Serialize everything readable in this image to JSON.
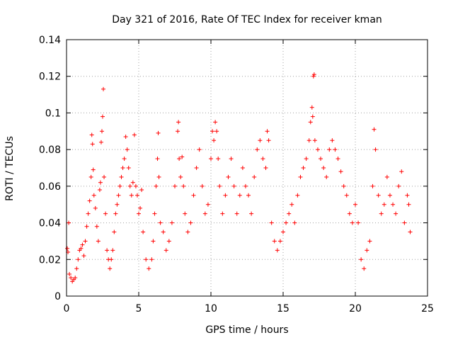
{
  "chart_data": {
    "type": "scatter",
    "title": "Day 321 of 2016, Rate Of TEC Index for receiver kman",
    "xlabel": "GPS time / hours",
    "ylabel": "ROTI / TECUs",
    "xlim": [
      0,
      25
    ],
    "ylim": [
      0,
      0.14
    ],
    "grid": true,
    "marker": "plus",
    "color": "#ff0000",
    "xticks": [
      0,
      5,
      10,
      15,
      20,
      25
    ],
    "xtick_labels": [
      "0",
      "5",
      "10",
      "15",
      "20",
      "25"
    ],
    "yticks": [
      0,
      0.02,
      0.04,
      0.06,
      0.08,
      0.1,
      0.12,
      0.14
    ],
    "ytick_labels": [
      "0",
      "0.02",
      "0.04",
      "0.06",
      "0.08",
      "0.1",
      "0.12",
      "0.14"
    ],
    "series": [
      {
        "name": "ROTI",
        "points": [
          [
            0.05,
            0.026
          ],
          [
            0.1,
            0.024
          ],
          [
            0.15,
            0.04
          ],
          [
            0.2,
            0.012
          ],
          [
            0.3,
            0.01
          ],
          [
            0.4,
            0.008
          ],
          [
            0.5,
            0.009
          ],
          [
            0.6,
            0.01
          ],
          [
            0.7,
            0.015
          ],
          [
            0.8,
            0.02
          ],
          [
            0.9,
            0.025
          ],
          [
            1.0,
            0.026
          ],
          [
            1.1,
            0.028
          ],
          [
            1.2,
            0.022
          ],
          [
            1.3,
            0.03
          ],
          [
            1.4,
            0.038
          ],
          [
            1.5,
            0.045
          ],
          [
            1.6,
            0.052
          ],
          [
            1.7,
            0.065
          ],
          [
            1.75,
            0.088
          ],
          [
            1.8,
            0.083
          ],
          [
            1.85,
            0.069
          ],
          [
            1.9,
            0.055
          ],
          [
            2.0,
            0.048
          ],
          [
            2.1,
            0.038
          ],
          [
            2.2,
            0.03
          ],
          [
            2.3,
            0.058
          ],
          [
            2.35,
            0.062
          ],
          [
            2.4,
            0.084
          ],
          [
            2.45,
            0.09
          ],
          [
            2.5,
            0.098
          ],
          [
            2.55,
            0.113
          ],
          [
            2.6,
            0.065
          ],
          [
            2.7,
            0.045
          ],
          [
            2.8,
            0.025
          ],
          [
            2.9,
            0.02
          ],
          [
            3.0,
            0.015
          ],
          [
            3.1,
            0.02
          ],
          [
            3.2,
            0.025
          ],
          [
            3.3,
            0.035
          ],
          [
            3.4,
            0.045
          ],
          [
            3.5,
            0.05
          ],
          [
            3.6,
            0.055
          ],
          [
            3.7,
            0.06
          ],
          [
            3.8,
            0.065
          ],
          [
            3.9,
            0.07
          ],
          [
            4.0,
            0.075
          ],
          [
            4.1,
            0.087
          ],
          [
            4.2,
            0.08
          ],
          [
            4.3,
            0.07
          ],
          [
            4.4,
            0.06
          ],
          [
            4.5,
            0.055
          ],
          [
            4.6,
            0.062
          ],
          [
            4.7,
            0.088
          ],
          [
            4.8,
            0.06
          ],
          [
            4.9,
            0.055
          ],
          [
            5.0,
            0.045
          ],
          [
            5.1,
            0.048
          ],
          [
            5.2,
            0.058
          ],
          [
            5.3,
            0.035
          ],
          [
            5.5,
            0.02
          ],
          [
            5.7,
            0.015
          ],
          [
            5.9,
            0.02
          ],
          [
            6.0,
            0.03
          ],
          [
            6.1,
            0.045
          ],
          [
            6.2,
            0.06
          ],
          [
            6.3,
            0.075
          ],
          [
            6.35,
            0.089
          ],
          [
            6.4,
            0.065
          ],
          [
            6.5,
            0.04
          ],
          [
            6.7,
            0.035
          ],
          [
            6.9,
            0.025
          ],
          [
            7.1,
            0.03
          ],
          [
            7.3,
            0.04
          ],
          [
            7.5,
            0.06
          ],
          [
            7.7,
            0.09
          ],
          [
            7.75,
            0.095
          ],
          [
            7.8,
            0.075
          ],
          [
            7.9,
            0.065
          ],
          [
            8.0,
            0.076
          ],
          [
            8.1,
            0.06
          ],
          [
            8.2,
            0.045
          ],
          [
            8.4,
            0.035
          ],
          [
            8.6,
            0.04
          ],
          [
            8.8,
            0.055
          ],
          [
            9.0,
            0.07
          ],
          [
            9.2,
            0.08
          ],
          [
            9.4,
            0.06
          ],
          [
            9.6,
            0.045
          ],
          [
            9.8,
            0.05
          ],
          [
            10.0,
            0.075
          ],
          [
            10.1,
            0.09
          ],
          [
            10.2,
            0.085
          ],
          [
            10.3,
            0.095
          ],
          [
            10.4,
            0.09
          ],
          [
            10.5,
            0.075
          ],
          [
            10.6,
            0.06
          ],
          [
            10.8,
            0.045
          ],
          [
            11.0,
            0.055
          ],
          [
            11.2,
            0.065
          ],
          [
            11.4,
            0.075
          ],
          [
            11.6,
            0.06
          ],
          [
            11.8,
            0.045
          ],
          [
            12.0,
            0.055
          ],
          [
            12.2,
            0.07
          ],
          [
            12.4,
            0.06
          ],
          [
            12.6,
            0.055
          ],
          [
            12.8,
            0.045
          ],
          [
            13.0,
            0.065
          ],
          [
            13.2,
            0.08
          ],
          [
            13.4,
            0.085
          ],
          [
            13.6,
            0.075
          ],
          [
            13.8,
            0.07
          ],
          [
            13.9,
            0.09
          ],
          [
            14.0,
            0.085
          ],
          [
            14.2,
            0.04
          ],
          [
            14.4,
            0.03
          ],
          [
            14.6,
            0.025
          ],
          [
            14.8,
            0.03
          ],
          [
            15.0,
            0.035
          ],
          [
            15.2,
            0.04
          ],
          [
            15.4,
            0.045
          ],
          [
            15.6,
            0.05
          ],
          [
            15.8,
            0.04
          ],
          [
            16.0,
            0.055
          ],
          [
            16.2,
            0.065
          ],
          [
            16.4,
            0.07
          ],
          [
            16.6,
            0.075
          ],
          [
            16.8,
            0.085
          ],
          [
            16.9,
            0.095
          ],
          [
            17.0,
            0.103
          ],
          [
            17.05,
            0.098
          ],
          [
            17.1,
            0.12
          ],
          [
            17.15,
            0.121
          ],
          [
            17.2,
            0.085
          ],
          [
            17.4,
            0.08
          ],
          [
            17.6,
            0.075
          ],
          [
            17.8,
            0.07
          ],
          [
            18.0,
            0.065
          ],
          [
            18.2,
            0.08
          ],
          [
            18.4,
            0.085
          ],
          [
            18.6,
            0.08
          ],
          [
            18.8,
            0.075
          ],
          [
            19.0,
            0.068
          ],
          [
            19.2,
            0.06
          ],
          [
            19.4,
            0.055
          ],
          [
            19.6,
            0.045
          ],
          [
            19.8,
            0.04
          ],
          [
            20.0,
            0.05
          ],
          [
            20.2,
            0.04
          ],
          [
            20.4,
            0.02
          ],
          [
            20.6,
            0.015
          ],
          [
            20.8,
            0.025
          ],
          [
            21.0,
            0.03
          ],
          [
            21.2,
            0.06
          ],
          [
            21.3,
            0.091
          ],
          [
            21.4,
            0.08
          ],
          [
            21.6,
            0.055
          ],
          [
            21.8,
            0.045
          ],
          [
            22.0,
            0.05
          ],
          [
            22.2,
            0.065
          ],
          [
            22.4,
            0.055
          ],
          [
            22.6,
            0.05
          ],
          [
            22.8,
            0.045
          ],
          [
            23.0,
            0.06
          ],
          [
            23.2,
            0.068
          ],
          [
            23.4,
            0.04
          ],
          [
            23.6,
            0.055
          ],
          [
            23.7,
            0.05
          ],
          [
            23.8,
            0.035
          ]
        ]
      }
    ]
  }
}
